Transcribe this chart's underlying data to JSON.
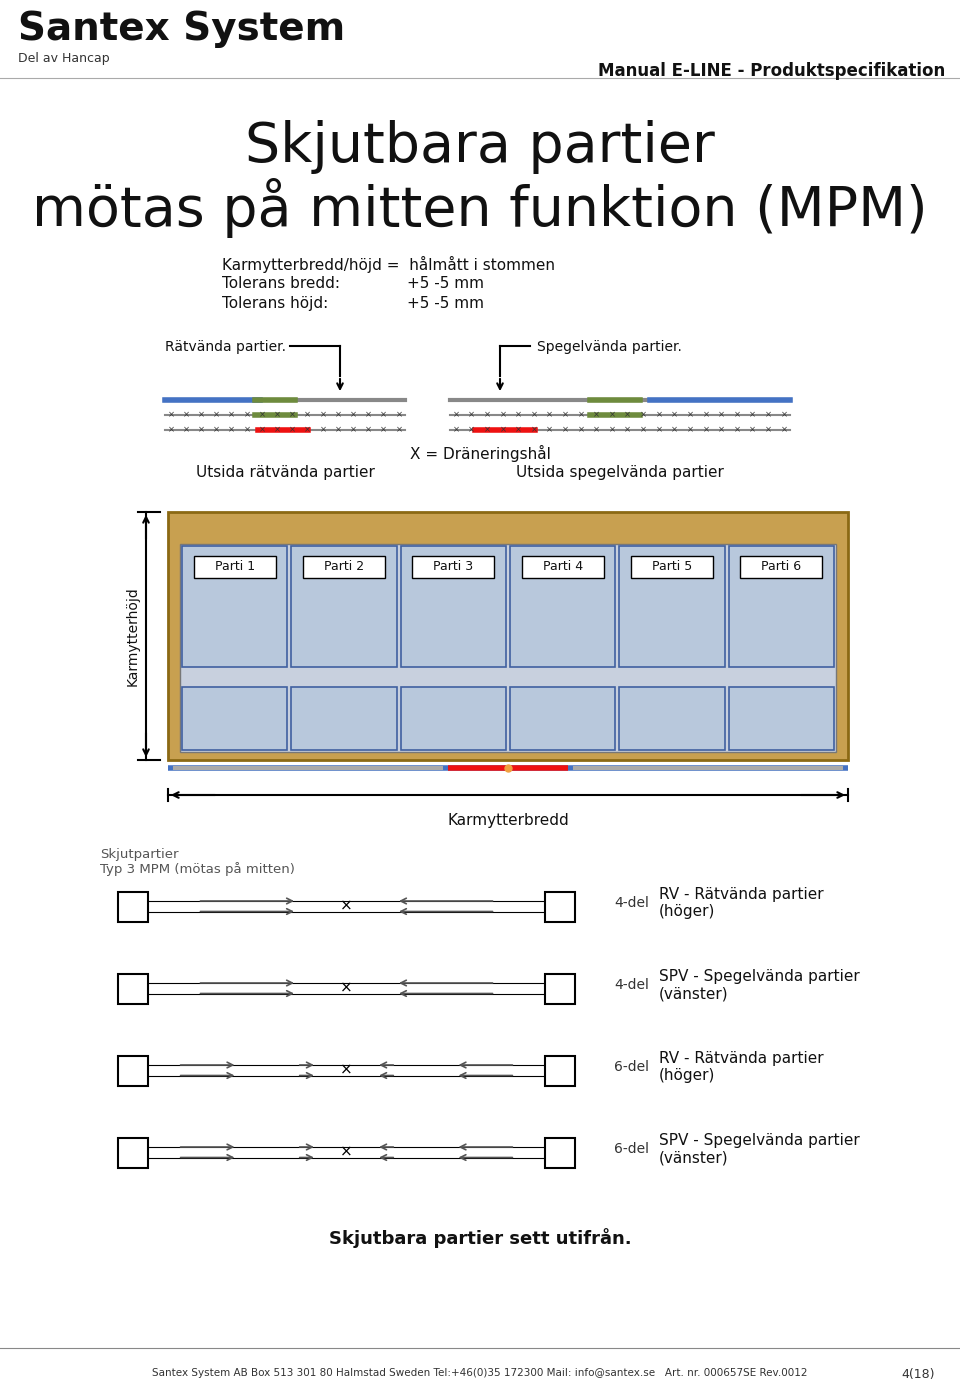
{
  "title_line1": "Skjutbara partier",
  "title_line2": "mötas på mitten funktion (MPM)",
  "header_left_title": "Santex System",
  "header_left_sub": "Del av Hancap",
  "header_right_title": "Manual E-LINE - Produktspecifikation",
  "spec_line1": "Karmytterbredd/höjd =  hålmått i stommen",
  "spec_line2_label": "Tolerans bredd:",
  "spec_line2_val": "+5 -5 mm",
  "spec_line3_label": "Tolerans höjd:",
  "spec_line3_val": "+5 -5 mm",
  "label_ratv": "Rätvända partier.",
  "label_spegelv": "Spegelvända partier.",
  "label_x": "X = Dräneringshål",
  "label_utsida_ratv": "Utsida rätvända partier",
  "label_utsida_spegelv": "Utsida spegelvända partier",
  "parti_labels": [
    "Parti 1",
    "Parti 2",
    "Parti 3",
    "Parti 4",
    "Parti 5",
    "Parti 6"
  ],
  "label_karmytterbredd": "Karmytterbredd",
  "label_karmytterhojd": "Karmytterhöjd",
  "label_skjutpartier_l1": "Skjutpartier",
  "label_skjutpartier_l2": "Typ 3 MPM (mötas på mitten)",
  "del_4_rv": "4-del",
  "del_4_spv": "4-del",
  "del_6_rv": "6-del",
  "del_6_spv": "6-del",
  "legend_rv_label": "RV - Rätvända partier\n(höger)",
  "legend_spv_label": "SPV - Spegelvända partier\n(vänster)",
  "legend_rv6_label": "RV - Rätvända partier\n(höger)",
  "legend_spv6_label": "SPV - Spegelvända partier\n(vänster)",
  "bottom_note": "Skjutbara partier sett utifrån.",
  "footer_text": "Santex System AB Box 513 301 80 Halmstad Sweden Tel:+46(0)35 172300 Mail: info@santex.se   Art. nr. 000657SE Rev.0012",
  "footer_page": "4(18)",
  "bg_color": "#ffffff",
  "text_color": "#1a1a1a",
  "blue_color": "#4472C4",
  "red_color": "#EE1111",
  "green_color": "#6E8B3D",
  "gray_color": "#888888",
  "wood_color": "#C8A050",
  "panel_color": "#B8C8DC",
  "panel_border": "#6680AA"
}
